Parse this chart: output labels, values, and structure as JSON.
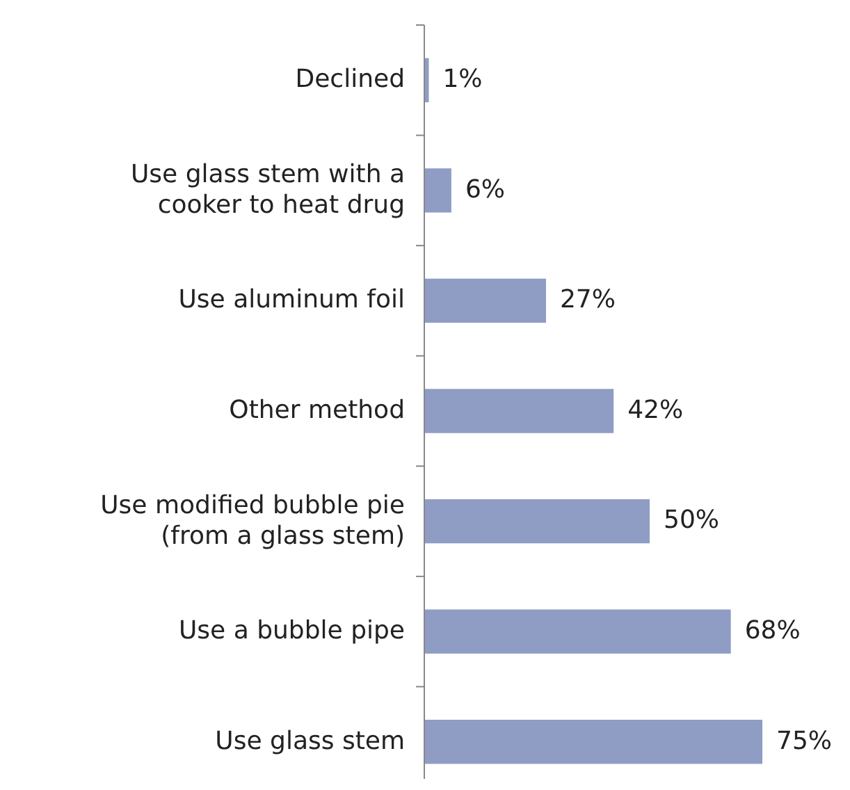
{
  "chart_data": {
    "type": "bar",
    "orientation": "horizontal",
    "categories": [
      "Declined",
      "Use glass stem with a cooker to heat drug",
      "Use aluminum foil",
      "Other method",
      "Use modified bubble pie (from a glass stem)",
      "Use a bubble pipe",
      "Use glass stem"
    ],
    "values": [
      1,
      6,
      27,
      42,
      50,
      68,
      75
    ],
    "value_labels": [
      "1%",
      "6%",
      "27%",
      "42%",
      "50%",
      "68%",
      "75%"
    ],
    "color": "#8f9cc4"
  }
}
